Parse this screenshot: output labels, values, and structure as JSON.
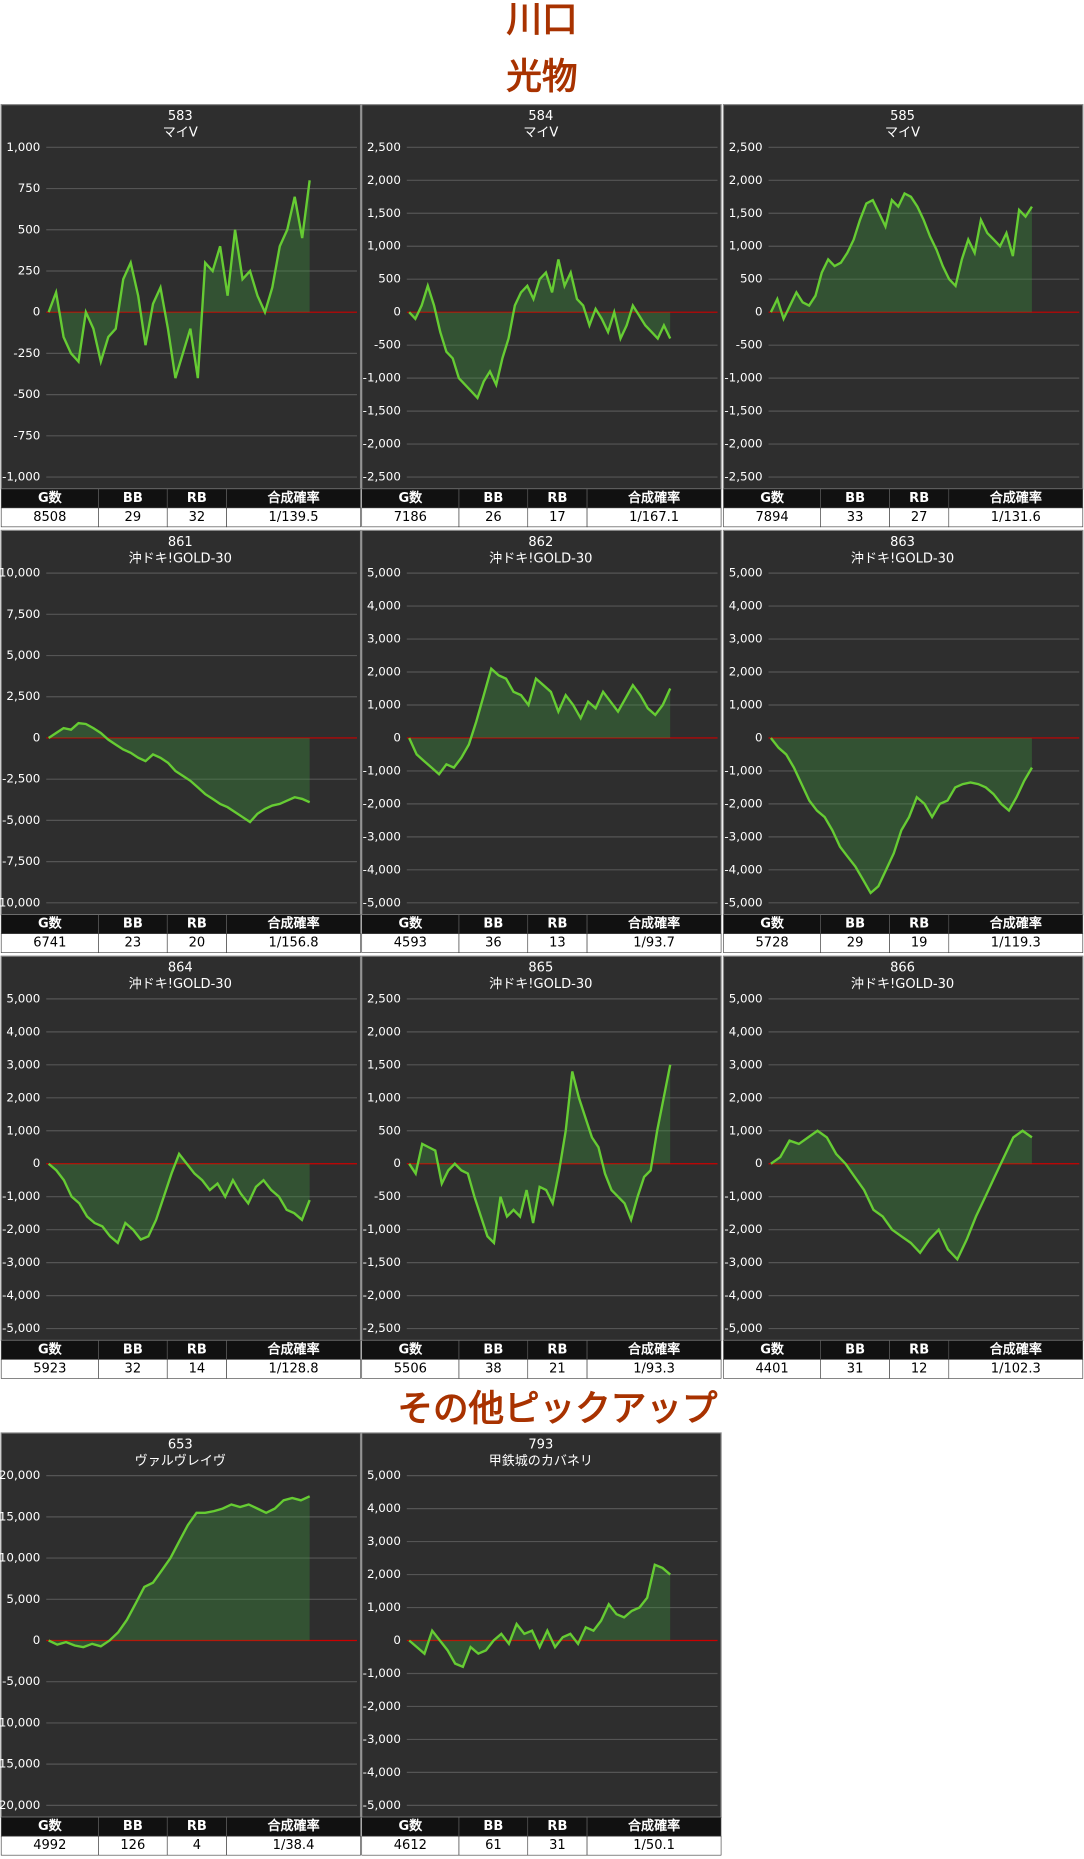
{
  "headings": [
    "川口",
    "光物",
    "その他ピックアップ"
  ],
  "chart_data": [
    {
      "type": "line",
      "title": "583",
      "subtitle": "マイV",
      "ylim": [
        -1000,
        1000
      ],
      "yticks": [
        {
          "value": 1000,
          "label": "1,000"
        },
        750,
        500,
        250,
        0,
        -250,
        -500,
        -750,
        {
          "value": -1000,
          "label": "-1,000"
        }
      ],
      "color": "#66cc33",
      "values": [
        0,
        120,
        -150,
        -250,
        -300,
        0,
        -100,
        -300,
        -150,
        -100,
        200,
        300,
        100,
        -200,
        50,
        150,
        -100,
        -400,
        -250,
        -100,
        -400,
        300,
        250,
        400,
        100,
        500,
        200,
        250,
        100,
        0,
        150,
        400,
        500,
        700,
        450,
        800
      ],
      "table": {
        "headers": [
          "G数",
          "BB",
          "RB",
          "合成確率"
        ],
        "values": [
          8508,
          29,
          32,
          "1/139.5"
        ]
      }
    },
    {
      "type": "line",
      "title": "584",
      "subtitle": "マイV",
      "ylim": [
        -2500,
        2500
      ],
      "yticks": [
        {
          "value": 2500,
          "label": "2,500"
        },
        {
          "value": 2000,
          "label": "2,000"
        },
        {
          "value": 1500,
          "label": "1,500"
        },
        {
          "value": 1000,
          "label": "1,000"
        },
        500,
        0,
        -500,
        {
          "value": -1000,
          "label": "-1,000"
        },
        {
          "value": -1500,
          "label": "-1,500"
        },
        {
          "value": -2000,
          "label": "-2,000"
        },
        {
          "value": -2500,
          "label": "-2,500"
        }
      ],
      "color": "#66cc33",
      "values": [
        0,
        -100,
        100,
        400,
        100,
        -300,
        -600,
        -700,
        -1000,
        -1100,
        -1200,
        -1300,
        -1050,
        -900,
        -1100,
        -700,
        -400,
        100,
        300,
        400,
        200,
        500,
        600,
        300,
        800,
        400,
        600,
        200,
        100,
        -200,
        50,
        -100,
        -300,
        0,
        -400,
        -200,
        100,
        -50,
        -200,
        -300,
        -400,
        -200,
        -400
      ],
      "table": {
        "headers": [
          "G数",
          "BB",
          "RB",
          "合成確率"
        ],
        "values": [
          7186,
          26,
          17,
          "1/167.1"
        ]
      }
    },
    {
      "type": "line",
      "title": "585",
      "subtitle": "マイV",
      "ylim": [
        -2500,
        2500
      ],
      "yticks": [
        {
          "value": 2500,
          "label": "2,500"
        },
        {
          "value": 2000,
          "label": "2,000"
        },
        {
          "value": 1500,
          "label": "1,500"
        },
        {
          "value": 1000,
          "label": "1,000"
        },
        500,
        0,
        -500,
        {
          "value": -1000,
          "label": "-1,000"
        },
        {
          "value": -1500,
          "label": "-1,500"
        },
        {
          "value": -2000,
          "label": "-2,000"
        },
        {
          "value": -2500,
          "label": "-2,500"
        }
      ],
      "color": "#66cc33",
      "values": [
        0,
        200,
        -100,
        100,
        300,
        150,
        100,
        250,
        600,
        800,
        700,
        750,
        900,
        1100,
        1400,
        1650,
        1700,
        1500,
        1300,
        1700,
        1600,
        1800,
        1750,
        1600,
        1400,
        1150,
        950,
        700,
        500,
        400,
        800,
        1100,
        900,
        1400,
        1200,
        1100,
        1000,
        1200,
        850,
        1550,
        1450,
        1600
      ],
      "table": {
        "headers": [
          "G数",
          "BB",
          "RB",
          "合成確率"
        ],
        "values": [
          7894,
          33,
          27,
          "1/131.6"
        ]
      }
    },
    {
      "type": "line",
      "title": "861",
      "subtitle": "沖ドキ!GOLD-30",
      "ylim": [
        -10000,
        10000
      ],
      "yticks": [
        {
          "value": 10000,
          "label": "10,000"
        },
        {
          "value": 7500,
          "label": "7,500"
        },
        {
          "value": 5000,
          "label": "5,000"
        },
        {
          "value": 2500,
          "label": "2,500"
        },
        0,
        {
          "value": -2500,
          "label": "-2,500"
        },
        {
          "value": -5000,
          "label": "-5,000"
        },
        {
          "value": -7500,
          "label": "-7,500"
        },
        {
          "value": -10000,
          "label": "-10,000"
        }
      ],
      "color": "#66cc33",
      "values": [
        0,
        300,
        600,
        500,
        900,
        850,
        600,
        300,
        -100,
        -400,
        -700,
        -900,
        -1200,
        -1400,
        -1000,
        -1200,
        -1500,
        -2000,
        -2300,
        -2600,
        -3000,
        -3400,
        -3700,
        -4000,
        -4200,
        -4500,
        -4800,
        -5100,
        -4600,
        -4300,
        -4100,
        -4000,
        -3800,
        -3600,
        -3700,
        -3900
      ],
      "table": {
        "headers": [
          "G数",
          "BB",
          "RB",
          "合成確率"
        ],
        "values": [
          6741,
          23,
          20,
          "1/156.8"
        ]
      }
    },
    {
      "type": "line",
      "title": "862",
      "subtitle": "沖ドキ!GOLD-30",
      "ylim": [
        -5000,
        5000
      ],
      "yticks": [
        {
          "value": 5000,
          "label": "5,000"
        },
        {
          "value": 4000,
          "label": "4,000"
        },
        {
          "value": 3000,
          "label": "3,000"
        },
        {
          "value": 2000,
          "label": "2,000"
        },
        {
          "value": 1000,
          "label": "1,000"
        },
        0,
        {
          "value": -1000,
          "label": "-1,000"
        },
        {
          "value": -2000,
          "label": "-2,000"
        },
        {
          "value": -3000,
          "label": "-3,000"
        },
        {
          "value": -4000,
          "label": "-4,000"
        },
        {
          "value": -5000,
          "label": "-5,000"
        }
      ],
      "color": "#66cc33",
      "values": [
        0,
        -500,
        -700,
        -900,
        -1100,
        -800,
        -900,
        -600,
        -200,
        500,
        1300,
        2100,
        1900,
        1800,
        1400,
        1300,
        1000,
        1800,
        1600,
        1400,
        800,
        1300,
        1000,
        600,
        1100,
        900,
        1400,
        1100,
        800,
        1200,
        1600,
        1300,
        900,
        700,
        1000,
        1500
      ],
      "table": {
        "headers": [
          "G数",
          "BB",
          "RB",
          "合成確率"
        ],
        "values": [
          4593,
          36,
          13,
          "1/93.7"
        ]
      }
    },
    {
      "type": "line",
      "title": "863",
      "subtitle": "沖ドキ!GOLD-30",
      "ylim": [
        -5000,
        5000
      ],
      "yticks": [
        {
          "value": 5000,
          "label": "5,000"
        },
        {
          "value": 4000,
          "label": "4,000"
        },
        {
          "value": 3000,
          "label": "3,000"
        },
        {
          "value": 2000,
          "label": "2,000"
        },
        {
          "value": 1000,
          "label": "1,000"
        },
        0,
        {
          "value": -1000,
          "label": "-1,000"
        },
        {
          "value": -2000,
          "label": "-2,000"
        },
        {
          "value": -3000,
          "label": "-3,000"
        },
        {
          "value": -4000,
          "label": "-4,000"
        },
        {
          "value": -5000,
          "label": "-5,000"
        }
      ],
      "color": "#66cc33",
      "values": [
        0,
        -300,
        -500,
        -900,
        -1400,
        -1900,
        -2200,
        -2400,
        -2800,
        -3300,
        -3600,
        -3900,
        -4300,
        -4700,
        -4500,
        -4000,
        -3500,
        -2800,
        -2400,
        -1800,
        -2000,
        -2400,
        -2000,
        -1900,
        -1500,
        -1400,
        -1350,
        -1400,
        -1500,
        -1700,
        -2000,
        -2200,
        -1800,
        -1300,
        -900
      ],
      "table": {
        "headers": [
          "G数",
          "BB",
          "RB",
          "合成確率"
        ],
        "values": [
          5728,
          29,
          19,
          "1/119.3"
        ]
      }
    },
    {
      "type": "line",
      "title": "864",
      "subtitle": "沖ドキ!GOLD-30",
      "ylim": [
        -5000,
        5000
      ],
      "yticks": [
        {
          "value": 5000,
          "label": "5,000"
        },
        {
          "value": 4000,
          "label": "4,000"
        },
        {
          "value": 3000,
          "label": "3,000"
        },
        {
          "value": 2000,
          "label": "2,000"
        },
        {
          "value": 1000,
          "label": "1,000"
        },
        0,
        {
          "value": -1000,
          "label": "-1,000"
        },
        {
          "value": -2000,
          "label": "-2,000"
        },
        {
          "value": -3000,
          "label": "-3,000"
        },
        {
          "value": -4000,
          "label": "-4,000"
        },
        {
          "value": -5000,
          "label": "-5,000"
        }
      ],
      "color": "#66cc33",
      "values": [
        0,
        -200,
        -500,
        -1000,
        -1200,
        -1600,
        -1800,
        -1900,
        -2200,
        -2400,
        -1800,
        -2000,
        -2300,
        -2200,
        -1700,
        -1000,
        -300,
        300,
        0,
        -300,
        -500,
        -800,
        -600,
        -1000,
        -500,
        -900,
        -1200,
        -700,
        -500,
        -800,
        -1000,
        -1400,
        -1500,
        -1700,
        -1100
      ],
      "table": {
        "headers": [
          "G数",
          "BB",
          "RB",
          "合成確率"
        ],
        "values": [
          5923,
          32,
          14,
          "1/128.8"
        ]
      }
    },
    {
      "type": "line",
      "title": "865",
      "subtitle": "沖ドキ!GOLD-30",
      "ylim": [
        -2500,
        2500
      ],
      "yticks": [
        {
          "value": 2500,
          "label": "2,500"
        },
        {
          "value": 2000,
          "label": "2,000"
        },
        {
          "value": 1500,
          "label": "1,500"
        },
        {
          "value": 1000,
          "label": "1,000"
        },
        500,
        0,
        -500,
        {
          "value": -1000,
          "label": "-1,000"
        },
        {
          "value": -1500,
          "label": "-1,500"
        },
        {
          "value": -2000,
          "label": "-2,000"
        },
        {
          "value": -2500,
          "label": "-2,500"
        }
      ],
      "color": "#66cc33",
      "values": [
        0,
        -150,
        300,
        250,
        200,
        -300,
        -100,
        0,
        -100,
        -150,
        -500,
        -800,
        -1100,
        -1200,
        -500,
        -800,
        -700,
        -800,
        -400,
        -900,
        -350,
        -400,
        -600,
        -100,
        500,
        1400,
        1000,
        700,
        400,
        250,
        -150,
        -400,
        -500,
        -600,
        -850,
        -500,
        -200,
        -100,
        500,
        1000,
        1500
      ],
      "table": {
        "headers": [
          "G数",
          "BB",
          "RB",
          "合成確率"
        ],
        "values": [
          5506,
          38,
          21,
          "1/93.3"
        ]
      }
    },
    {
      "type": "line",
      "title": "866",
      "subtitle": "沖ドキ!GOLD-30",
      "ylim": [
        -5000,
        5000
      ],
      "yticks": [
        {
          "value": 5000,
          "label": "5,000"
        },
        {
          "value": 4000,
          "label": "4,000"
        },
        {
          "value": 3000,
          "label": "3,000"
        },
        {
          "value": 2000,
          "label": "2,000"
        },
        {
          "value": 1000,
          "label": "1,000"
        },
        0,
        {
          "value": -1000,
          "label": "-1,000"
        },
        {
          "value": -2000,
          "label": "-2,000"
        },
        {
          "value": -3000,
          "label": "-3,000"
        },
        {
          "value": -4000,
          "label": "-4,000"
        },
        {
          "value": -5000,
          "label": "-5,000"
        }
      ],
      "color": "#66cc33",
      "values": [
        0,
        200,
        700,
        600,
        800,
        1000,
        800,
        300,
        0,
        -400,
        -800,
        -1400,
        -1600,
        -2000,
        -2200,
        -2400,
        -2700,
        -2300,
        -2000,
        -2600,
        -2900,
        -2300,
        -1600,
        -1000,
        -400,
        200,
        800,
        1000,
        800
      ],
      "table": {
        "headers": [
          "G数",
          "BB",
          "RB",
          "合成確率"
        ],
        "values": [
          4401,
          31,
          12,
          "1/102.3"
        ]
      }
    },
    {
      "type": "line",
      "title": "653",
      "subtitle": "ヴァルヴレイヴ",
      "ylim": [
        -20000,
        20000
      ],
      "yticks": [
        {
          "value": 20000,
          "label": "20,000"
        },
        {
          "value": 15000,
          "label": "15,000"
        },
        {
          "value": 10000,
          "label": "10,000"
        },
        {
          "value": 5000,
          "label": "5,000"
        },
        0,
        {
          "value": -5000,
          "label": "-5,000"
        },
        {
          "value": -10000,
          "label": "-10,000"
        },
        {
          "value": -15000,
          "label": "-15,000"
        },
        {
          "value": -20000,
          "label": "-20,000"
        }
      ],
      "color": "#66cc33",
      "values": [
        0,
        -500,
        -200,
        -600,
        -800,
        -400,
        -700,
        0,
        1000,
        2500,
        4500,
        6500,
        7000,
        8500,
        10000,
        12000,
        14000,
        15500,
        15500,
        15700,
        16000,
        16500,
        16200,
        16500,
        16000,
        15500,
        16000,
        17000,
        17300,
        17000,
        17500
      ],
      "table": {
        "headers": [
          "G数",
          "BB",
          "RB",
          "合成確率"
        ],
        "values": [
          4992,
          126,
          4,
          "1/38.4"
        ]
      }
    },
    {
      "type": "line",
      "title": "793",
      "subtitle": "甲鉄城のカバネリ",
      "ylim": [
        -5000,
        5000
      ],
      "yticks": [
        {
          "value": 5000,
          "label": "5,000"
        },
        {
          "value": 4000,
          "label": "4,000"
        },
        {
          "value": 3000,
          "label": "3,000"
        },
        {
          "value": 2000,
          "label": "2,000"
        },
        {
          "value": 1000,
          "label": "1,000"
        },
        0,
        {
          "value": -1000,
          "label": "-1,000"
        },
        {
          "value": -2000,
          "label": "-2,000"
        },
        {
          "value": -3000,
          "label": "-3,000"
        },
        {
          "value": -4000,
          "label": "-4,000"
        },
        {
          "value": -5000,
          "label": "-5,000"
        }
      ],
      "color": "#66cc33",
      "values": [
        0,
        -200,
        -400,
        300,
        0,
        -300,
        -700,
        -800,
        -200,
        -400,
        -300,
        0,
        200,
        -100,
        500,
        200,
        300,
        -200,
        300,
        -200,
        100,
        200,
        -100,
        400,
        300,
        600,
        1100,
        800,
        700,
        900,
        1000,
        1300,
        2300,
        2200,
        2000
      ],
      "table": {
        "headers": [
          "G数",
          "BB",
          "RB",
          "合成確率"
        ],
        "values": [
          4612,
          61,
          31,
          "1/50.1"
        ]
      }
    }
  ]
}
